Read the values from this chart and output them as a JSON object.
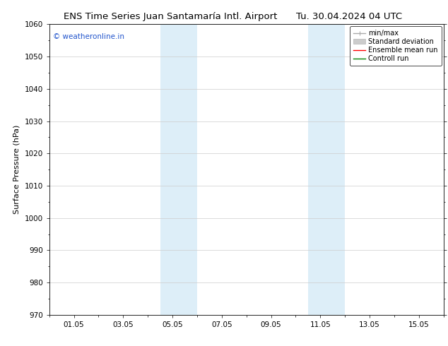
{
  "title_left": "ENS Time Series Juan Santamaría Intl. Airport",
  "title_right": "Tu. 30.04.2024 04 UTC",
  "ylabel": "Surface Pressure (hPa)",
  "ylim": [
    970,
    1060
  ],
  "yticks": [
    970,
    980,
    990,
    1000,
    1010,
    1020,
    1030,
    1040,
    1050,
    1060
  ],
  "xtick_labels": [
    "01.05",
    "03.05",
    "05.05",
    "07.05",
    "09.05",
    "11.05",
    "13.05",
    "15.05"
  ],
  "xtick_positions": [
    1,
    3,
    5,
    7,
    9,
    11,
    13,
    15
  ],
  "xlim": [
    0,
    16
  ],
  "shaded_bands": [
    {
      "x_start": 4.5,
      "x_end": 6.0,
      "color": "#ddeef8"
    },
    {
      "x_start": 10.5,
      "x_end": 12.0,
      "color": "#ddeef8"
    }
  ],
  "watermark_text": "© weatheronline.in",
  "watermark_color": "#2255cc",
  "legend_items": [
    {
      "label": "min/max",
      "color": "#aaaaaa"
    },
    {
      "label": "Standard deviation",
      "color": "#cccccc"
    },
    {
      "label": "Ensemble mean run",
      "color": "red"
    },
    {
      "label": "Controll run",
      "color": "green"
    }
  ],
  "bg_color": "#ffffff",
  "grid_color": "#cccccc",
  "title_fontsize": 9.5,
  "label_fontsize": 8,
  "tick_fontsize": 7.5,
  "legend_fontsize": 7,
  "watermark_fontsize": 7.5
}
